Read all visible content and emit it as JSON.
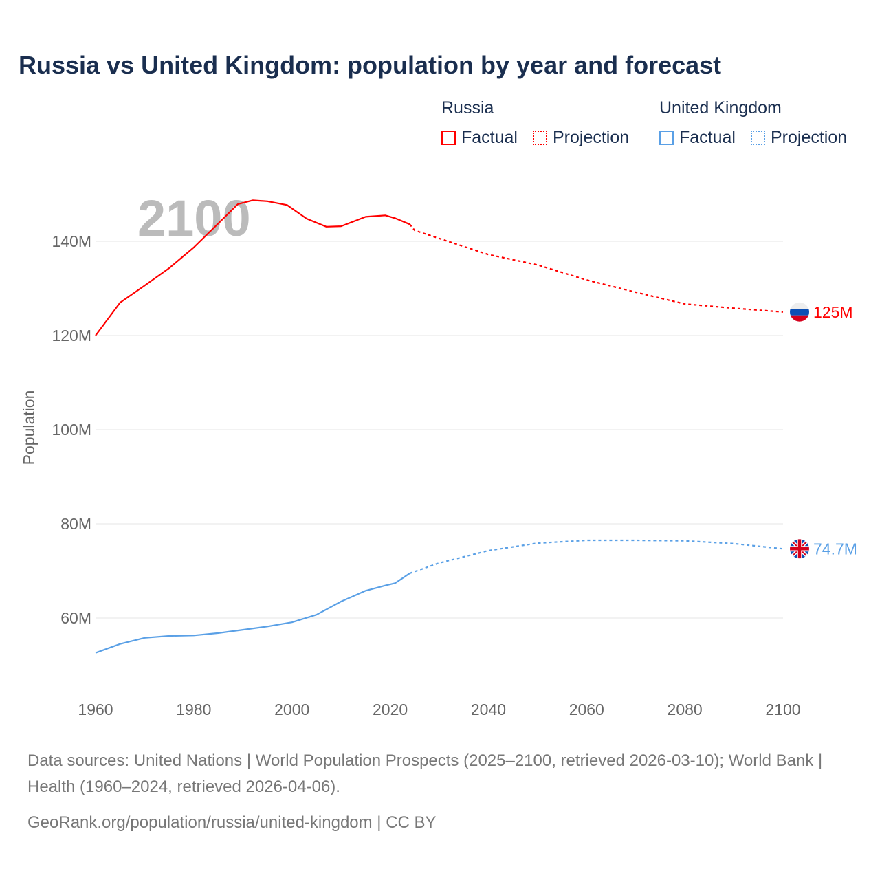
{
  "chart_data": {
    "type": "line",
    "title": "Russia vs United Kingdom: population by year and forecast",
    "xlabel": "",
    "ylabel": "Population",
    "xlim": [
      1960,
      2100
    ],
    "ylim": [
      45,
      152
    ],
    "x_ticks": [
      "1960",
      "1980",
      "2000",
      "2020",
      "2040",
      "2060",
      "2080",
      "2100"
    ],
    "y_ticks": [
      {
        "v": 60,
        "label": "60M"
      },
      {
        "v": 80,
        "label": "80M"
      },
      {
        "v": 100,
        "label": "100M"
      },
      {
        "v": 120,
        "label": "120M"
      },
      {
        "v": 140,
        "label": "140M"
      }
    ],
    "year_watermark": "2100",
    "unit": "millions",
    "series": [
      {
        "name": "Russia",
        "color": "#ff0000",
        "end_label": "125M",
        "flag": "russia-flag",
        "factual": {
          "x": [
            1960,
            1965,
            1970,
            1975,
            1980,
            1985,
            1989,
            1992,
            1995,
            1999,
            2003,
            2007,
            2010,
            2015,
            2019,
            2021,
            2024
          ],
          "y": [
            120,
            127,
            130.6,
            134.3,
            138.7,
            143.8,
            147.9,
            148.7,
            148.5,
            147.7,
            144.8,
            143.1,
            143.2,
            145.2,
            145.5,
            144.9,
            143.6
          ]
        },
        "projection": {
          "x": [
            2024,
            2025,
            2030,
            2040,
            2050,
            2060,
            2070,
            2080,
            2090,
            2100
          ],
          "y": [
            143.6,
            142.3,
            140.6,
            137.2,
            135,
            131.8,
            129.2,
            126.7,
            125.8,
            125
          ]
        }
      },
      {
        "name": "United Kingdom",
        "color": "#5aa0e6",
        "end_label": "74.7M",
        "flag": "uk-flag",
        "factual": {
          "x": [
            1960,
            1965,
            1970,
            1975,
            1980,
            1985,
            1990,
            1995,
            2000,
            2005,
            2010,
            2015,
            2019,
            2021,
            2024
          ],
          "y": [
            52.6,
            54.5,
            55.8,
            56.2,
            56.3,
            56.8,
            57.5,
            58.2,
            59.1,
            60.7,
            63.5,
            65.8,
            66.9,
            67.4,
            69.5
          ]
        },
        "projection": {
          "x": [
            2024,
            2030,
            2040,
            2050,
            2060,
            2070,
            2080,
            2090,
            2100
          ],
          "y": [
            69.5,
            71.7,
            74.3,
            75.9,
            76.5,
            76.5,
            76.4,
            75.8,
            74.7
          ]
        }
      }
    ],
    "legend": {
      "placement": "top-right",
      "groups": [
        {
          "name": "Russia",
          "factual": "Factual",
          "projection": "Projection"
        },
        {
          "name": "United Kingdom",
          "factual": "Factual",
          "projection": "Projection"
        }
      ]
    }
  },
  "footer": {
    "sources": "Data sources: United Nations | World Population Prospects (2025–2100, retrieved 2026-03-10); World Bank | Health (1960–2024, retrieved 2026-04-06).",
    "link": "GeoRank.org/population/russia/united-kingdom | CC BY"
  }
}
